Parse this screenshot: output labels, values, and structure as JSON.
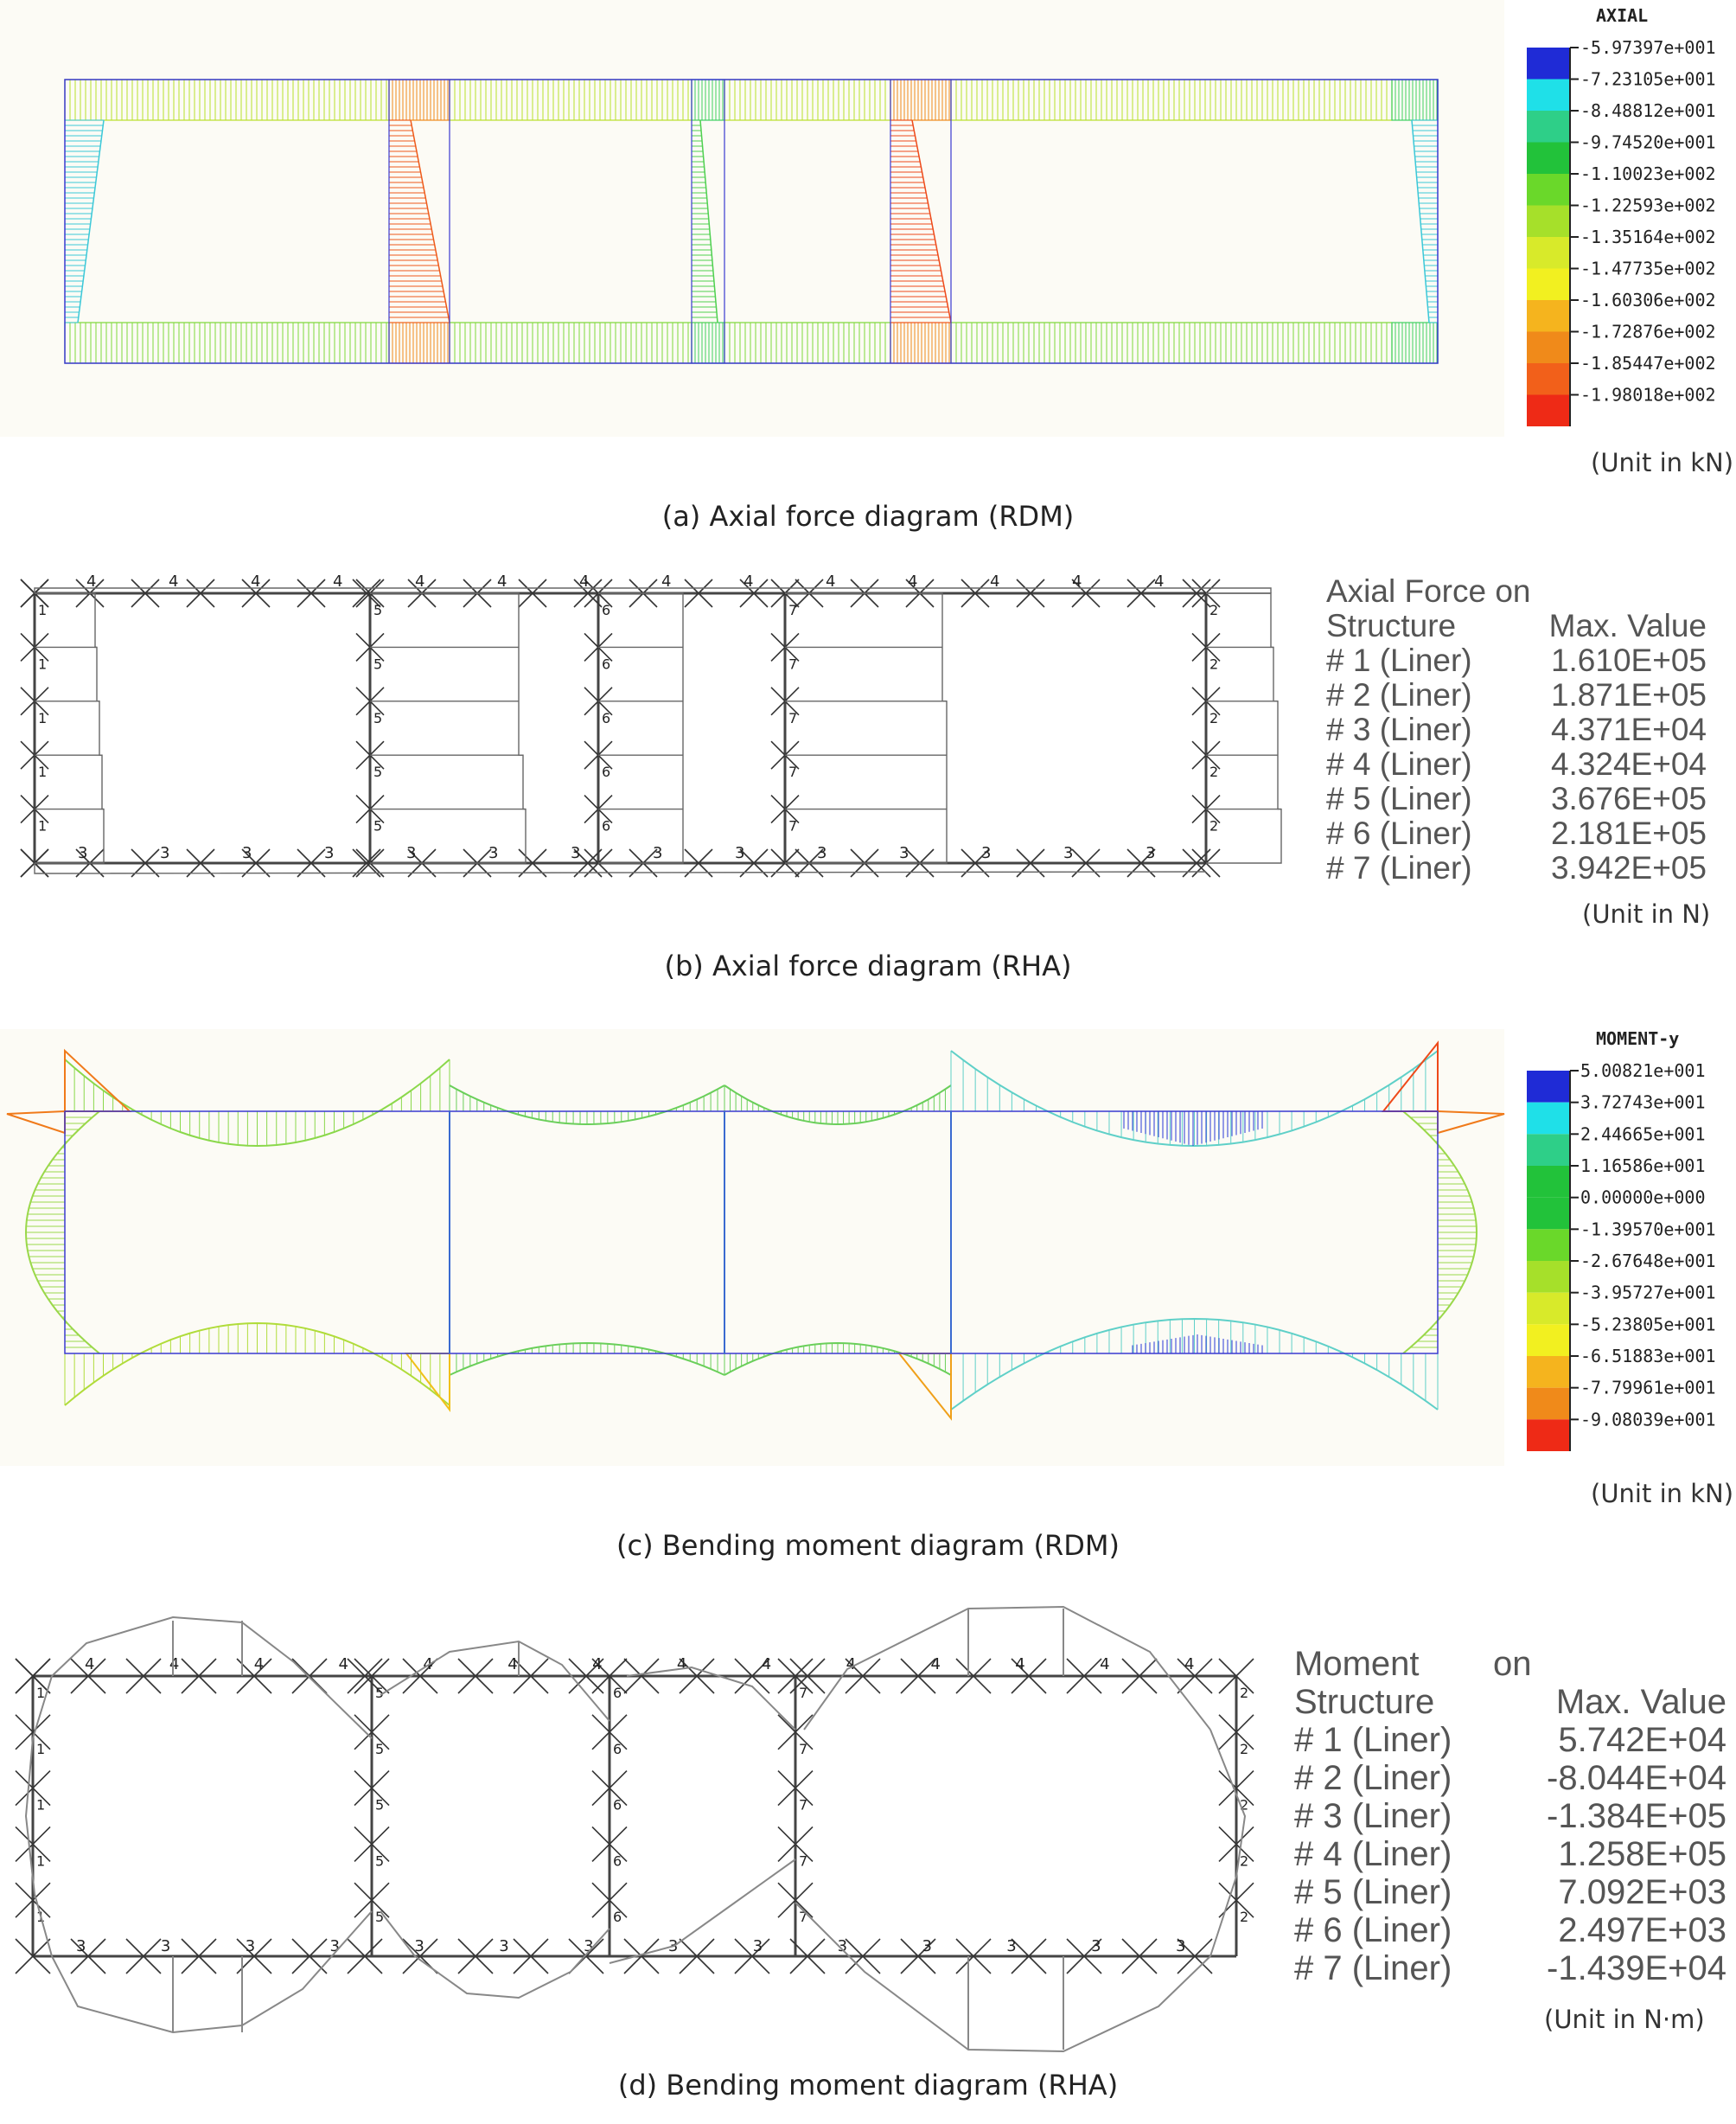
{
  "panels": {
    "a": {
      "legend_title": "AXIAL",
      "legend_values": [
        "-5.97397e+001",
        "-7.23105e+001",
        "-8.48812e+001",
        "-9.74520e+001",
        "-1.10023e+002",
        "-1.22593e+002",
        "-1.35164e+002",
        "-1.47735e+002",
        "-1.60306e+002",
        "-1.72876e+002",
        "-1.85447e+002",
        "-1.98018e+002"
      ],
      "legend_colors": [
        "#1f2bd6",
        "#1fe0e8",
        "#2ecf88",
        "#22c23a",
        "#6ad82a",
        "#a6e02a",
        "#d8ea2a",
        "#f2f020",
        "#f5b41e",
        "#f08a1a",
        "#f2601a",
        "#ee2a16"
      ],
      "unit": "(Unit in kN)",
      "caption": "(a)  Axial  force  diagram  (RDM)"
    },
    "b": {
      "title_line1": "Axial Force on",
      "title_line2_left": "Structure",
      "title_line2_right": "Max. Value",
      "rows": [
        {
          "label": "# 1 (Liner)",
          "value": "1.610E+05"
        },
        {
          "label": "# 2 (Liner)",
          "value": "1.871E+05"
        },
        {
          "label": "# 3 (Liner)",
          "value": "4.371E+04"
        },
        {
          "label": "# 4 (Liner)",
          "value": "4.324E+04"
        },
        {
          "label": "# 5 (Liner)",
          "value": "3.676E+05"
        },
        {
          "label": "# 6 (Liner)",
          "value": "2.181E+05"
        },
        {
          "label": "# 7 (Liner)",
          "value": "3.942E+05"
        }
      ],
      "unit": "(Unit in N)",
      "caption": "(b)  Axial  force  diagram  (RHA)",
      "top_numbers": [
        "4",
        "4",
        "4",
        "4",
        "4",
        "4",
        "4",
        "4",
        "4",
        "4",
        "4",
        "4",
        "4",
        "4"
      ],
      "bottom_numbers": [
        "3",
        "3",
        "3",
        "3",
        "3",
        "3",
        "3",
        "3",
        "3",
        "3",
        "3",
        "3",
        "3",
        "3"
      ],
      "wall_numbers": [
        "1",
        "5",
        "6",
        "7",
        "2"
      ]
    },
    "c": {
      "legend_title": "MOMENT-y",
      "legend_values": [
        "5.00821e+001",
        "3.72743e+001",
        "2.44665e+001",
        "1.16586e+001",
        "0.00000e+000",
        "-1.39570e+001",
        "-2.67648e+001",
        "-3.95727e+001",
        "-5.23805e+001",
        "-6.51883e+001",
        "-7.79961e+001",
        "-9.08039e+001"
      ],
      "legend_colors": [
        "#1f2bd6",
        "#1fe0e8",
        "#2ecf88",
        "#22c23a",
        "#22c23a",
        "#6ad82a",
        "#a6e02a",
        "#d8ea2a",
        "#f2f020",
        "#f5b41e",
        "#f08a1a",
        "#ee2a16"
      ],
      "unit": "(Unit in kN)",
      "caption": "(c)  Bending  moment  diagram  (RDM)"
    },
    "d": {
      "title_line1_left": "Moment",
      "title_line1_right": "on",
      "title_line2_left": "Structure",
      "title_line2_right": "Max. Value",
      "rows": [
        {
          "label": "# 1 (Liner)",
          "value": "5.742E+04"
        },
        {
          "label": "# 2 (Liner)",
          "value": "-8.044E+04"
        },
        {
          "label": "# 3 (Liner)",
          "value": "-1.384E+05"
        },
        {
          "label": "# 4 (Liner)",
          "value": "1.258E+05"
        },
        {
          "label": "# 5 (Liner)",
          "value": "7.092E+03"
        },
        {
          "label": "# 6 (Liner)",
          "value": "2.497E+03"
        },
        {
          "label": "# 7 (Liner)",
          "value": "-1.439E+04"
        }
      ],
      "unit": "(Unit in N·m)",
      "caption": "(d)  Bending  moment  diagram  (RHA)",
      "top_numbers": [
        "4",
        "4",
        "4",
        "4",
        "4",
        "4",
        "4",
        "4",
        "4",
        "4",
        "4",
        "4",
        "4",
        "4"
      ],
      "bottom_numbers": [
        "3",
        "3",
        "3",
        "3",
        "3",
        "3",
        "3",
        "3",
        "3",
        "3",
        "3",
        "3",
        "3",
        "3"
      ],
      "wall_numbers": [
        "1",
        "5",
        "6",
        "7",
        "2"
      ]
    }
  }
}
